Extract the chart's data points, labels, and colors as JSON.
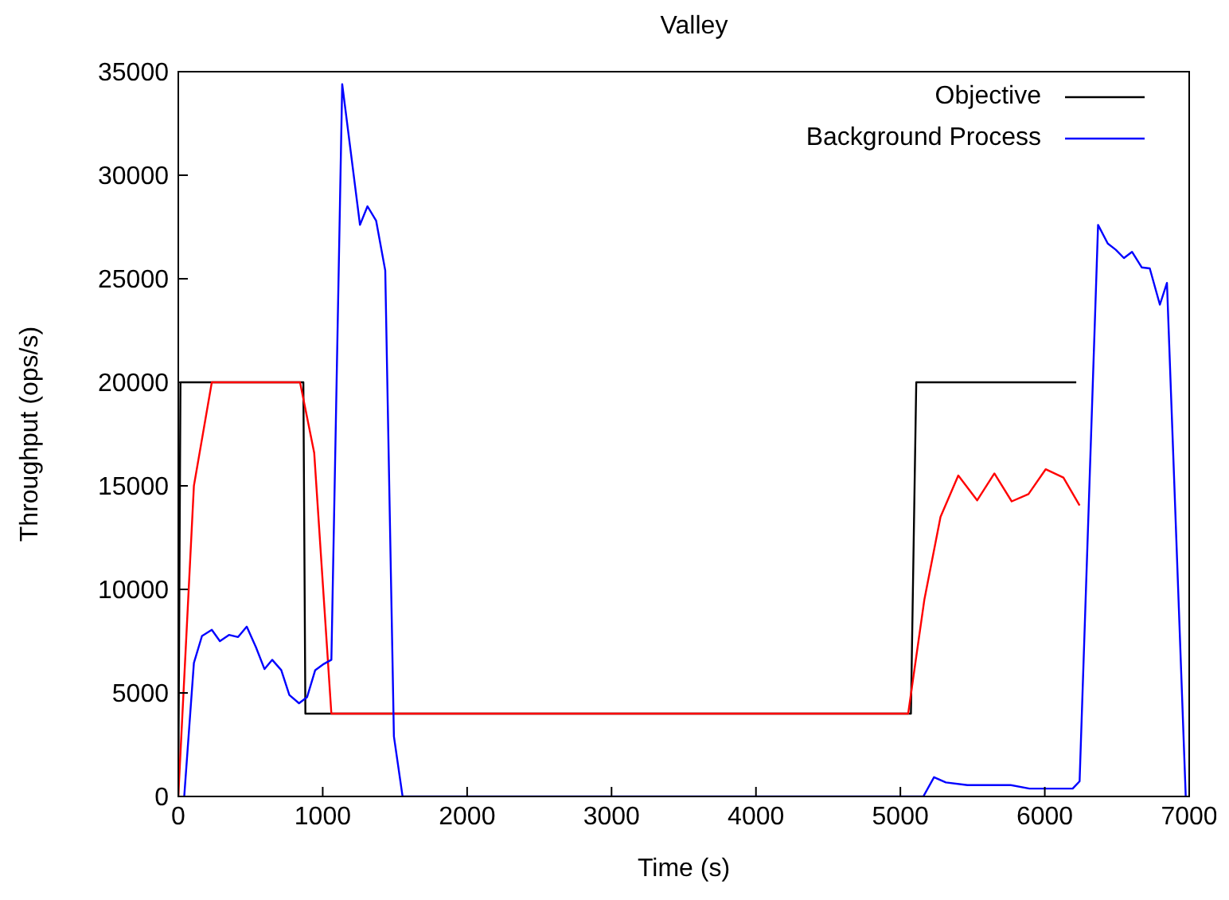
{
  "chart_data": {
    "type": "line",
    "title": "Valley",
    "xlabel": "Time (s)",
    "ylabel": "Throughput (ops/s)",
    "xlim": [
      0,
      7000
    ],
    "xticks": [
      0,
      1000,
      2000,
      3000,
      4000,
      5000,
      6000,
      7000
    ],
    "ylim": [
      0,
      35000
    ],
    "yticks": [
      0,
      5000,
      10000,
      15000,
      20000,
      25000,
      30000,
      35000
    ],
    "grid": false,
    "legend": "top right",
    "marker": "none",
    "line_style": "solid",
    "series": [
      {
        "name": "Objective",
        "color": "#000000",
        "x": [
          0,
          15,
          866,
          880,
          5073,
          5110,
          6218
        ],
        "values": [
          0,
          20000,
          20000,
          4000,
          4000,
          20000,
          20000
        ]
      },
      {
        "color": "#ff0000",
        "x": [
          0,
          108,
          232,
          843,
          941,
          1060,
          5054,
          5166,
          5278,
          5401,
          5532,
          5651,
          5771,
          5887,
          6006,
          6129,
          6241
        ],
        "values": [
          0,
          15000,
          20000,
          20000,
          16600,
          4000,
          4000,
          9500,
          13500,
          15500,
          14300,
          15600,
          14250,
          14600,
          15800,
          15400,
          14050
        ]
      },
      {
        "name": "Background Process",
        "color": "#0000ff",
        "x": [
          41,
          108,
          164,
          232,
          288,
          351,
          414,
          474,
          538,
          597,
          650,
          713,
          769,
          836,
          892,
          948,
          1008,
          1060,
          1135,
          1202,
          1258,
          1310,
          1370,
          1433,
          1493,
          1553,
          5159,
          5233,
          5315,
          5465,
          5764,
          5894,
          6193,
          6241,
          6369,
          6436,
          6492,
          6548,
          6604,
          6671,
          6727,
          6797,
          6846,
          6976
        ],
        "values": [
          0,
          6450,
          7750,
          8050,
          7500,
          7800,
          7700,
          8200,
          7200,
          6150,
          6600,
          6100,
          4900,
          4500,
          4800,
          6100,
          6400,
          6600,
          34400,
          30700,
          27600,
          28500,
          27800,
          25400,
          2900,
          0,
          0,
          930,
          680,
          550,
          550,
          380,
          380,
          730,
          27600,
          26700,
          26400,
          26000,
          26300,
          25550,
          25500,
          23750,
          24800,
          0
        ]
      }
    ]
  }
}
